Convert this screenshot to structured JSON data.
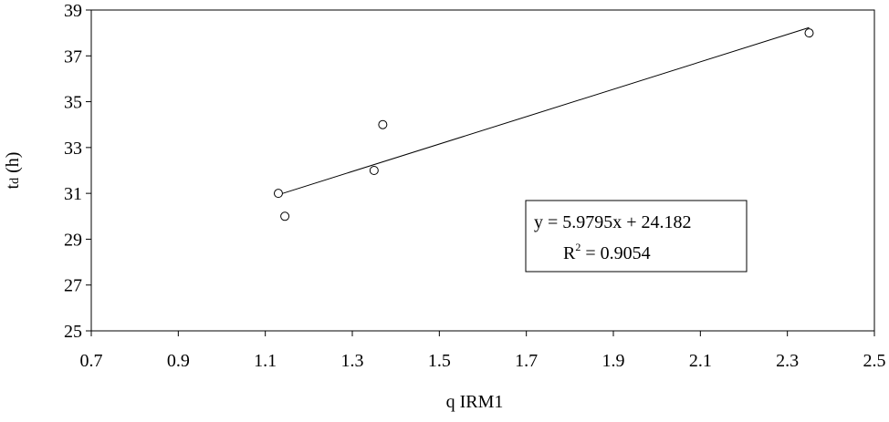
{
  "chart_data": {
    "type": "scatter",
    "x_label": "q IRM1",
    "y_label": {
      "main": "t",
      "sub": "d",
      "rest": " (h)"
    },
    "series": [
      {
        "name": "td",
        "color": "#000000",
        "x": [
          1.13,
          1.145,
          1.35,
          1.37,
          2.35
        ],
        "values": [
          31,
          30,
          32,
          34,
          38
        ]
      }
    ],
    "trendline": {
      "slope": 5.9795,
      "intercept": 24.182
    },
    "annotation": {
      "equation": "y = 5.9795x + 24.182",
      "r2": {
        "base": "R",
        "sup": "2",
        "text": " = 0.9054"
      }
    },
    "xlim": [
      0.7,
      2.5
    ],
    "xticks": [
      0.7,
      0.9,
      1.1,
      1.3,
      1.5,
      1.7,
      1.9,
      2.1,
      2.3,
      2.5
    ],
    "ylim": [
      25,
      39
    ],
    "yticks": [
      25,
      27,
      29,
      31,
      33,
      35,
      37,
      39
    ],
    "grid": false
  }
}
